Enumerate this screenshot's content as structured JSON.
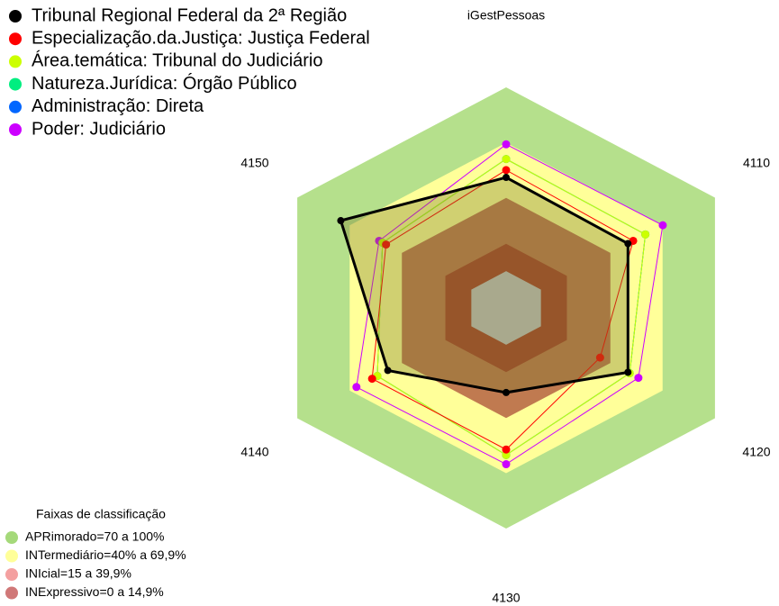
{
  "chart_data": {
    "type": "radar",
    "axes": [
      "iGestPessoas",
      "4110",
      "4120",
      "4130",
      "4140",
      "4150"
    ],
    "rlim": [
      -20,
      100
    ],
    "series": [
      {
        "name": "Tribunal Regional Federal da 2ª  Região",
        "color": "#000000",
        "values": [
          51,
          50,
          50,
          26,
          48,
          75
        ]
      },
      {
        "name": "Especialização.da.Justiça: Justiça Federal",
        "color": "#ff0000",
        "values": [
          55,
          53,
          34,
          57,
          57,
          49
        ]
      },
      {
        "name": "Área.temática: Tribunal do Judiciário",
        "color": "#ccff00",
        "values": [
          61,
          60,
          51,
          60,
          54,
          51
        ]
      },
      {
        "name": "Natureza.Jurídica: Órgão Público",
        "color": "#00ee80",
        "values": [
          61,
          60,
          51,
          60,
          54,
          51
        ]
      },
      {
        "name": "Administração: Direta",
        "color": "#0066ff",
        "values": [
          61,
          60,
          51,
          60,
          54,
          51
        ]
      },
      {
        "name": "Poder: Judiciário",
        "color": "#cc00ff",
        "values": [
          69,
          70,
          56,
          65,
          66,
          53
        ]
      }
    ],
    "bands_title": "Faixas de classificação",
    "bands": [
      {
        "name": "APRimorado=70 a 100%",
        "from": 70,
        "to": 100,
        "color": "#a5d97a"
      },
      {
        "name": "INTermediário=40% a 69,9%",
        "from": 40,
        "to": 69.9,
        "color": "#ffff99"
      },
      {
        "name": "INIcial=15 a 39,9%",
        "from": 15,
        "to": 39.9,
        "color": "#f4a0a0"
      },
      {
        "name": "INExpressivo=0 a 14,9%",
        "from": 0,
        "to": 14.9,
        "color": "#d07878"
      }
    ]
  }
}
